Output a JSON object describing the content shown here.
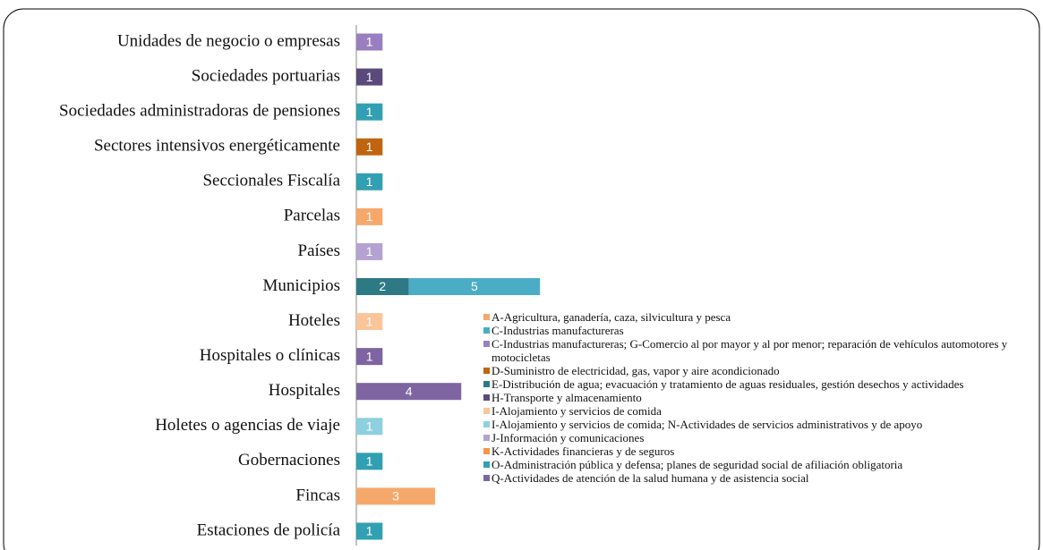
{
  "chart_data": {
    "type": "bar",
    "orientation": "horizontal",
    "stacked": true,
    "categories": [
      "Unidades de negocio o empresas",
      "Sociedades portuarias",
      "Sociedades administradoras de pensiones",
      "Sectores intensivos energéticamente",
      "Seccionales Fiscalía",
      "Parcelas",
      "Países",
      "Municipios",
      "Hoteles",
      "Hospitales o clínicas",
      "Hospitales",
      "Holetes o agencias de viaje",
      "Gobernaciones",
      "Fincas",
      "Estaciones de policía"
    ],
    "xlim": [
      0,
      26
    ],
    "series": [
      {
        "name": "A-Agricultura, ganadería, caza, silvicultura y pesca",
        "color": "#f6a86b",
        "values": [
          null,
          null,
          null,
          null,
          null,
          1,
          null,
          null,
          null,
          null,
          null,
          null,
          null,
          3,
          null
        ]
      },
      {
        "name": "C-Industrias manufactureras",
        "color": "#4bacc6",
        "values": [
          null,
          null,
          null,
          null,
          null,
          null,
          null,
          5,
          null,
          null,
          null,
          null,
          null,
          null,
          null
        ]
      },
      {
        "name": "C-Industrias manufactureras; G-Comercio al por mayor y al por menor; reparación de vehículos automotores y motocicletas",
        "color": "#9a7fc0",
        "values": [
          1,
          null,
          null,
          null,
          null,
          null,
          null,
          null,
          null,
          null,
          null,
          null,
          null,
          null,
          null
        ]
      },
      {
        "name": "D-Suministro de electricidad, gas, vapor y aire acondicionado",
        "color": "#c0650f",
        "values": [
          null,
          null,
          null,
          1,
          null,
          null,
          null,
          null,
          null,
          null,
          null,
          null,
          null,
          null,
          null
        ]
      },
      {
        "name": "E-Distribución de agua; evacuación y tratamiento de aguas residuales, gestión desechos y actividades",
        "color": "#2e7a84",
        "values": [
          null,
          null,
          null,
          null,
          null,
          null,
          null,
          2,
          null,
          null,
          null,
          null,
          null,
          null,
          null
        ]
      },
      {
        "name": "H-Transporte y almacenamiento",
        "color": "#5a4a7c",
        "values": [
          null,
          1,
          null,
          null,
          null,
          null,
          null,
          null,
          null,
          null,
          null,
          null,
          null,
          null,
          null
        ]
      },
      {
        "name": "I-Alojamiento y servicios de comida",
        "color": "#fbc59a",
        "values": [
          null,
          null,
          null,
          null,
          null,
          null,
          null,
          null,
          1,
          null,
          null,
          null,
          null,
          null,
          null
        ]
      },
      {
        "name": "I-Alojamiento y servicios de comida; N-Actividades de servicios administrativos y de apoyo",
        "color": "#8fd0e0",
        "values": [
          null,
          null,
          null,
          null,
          null,
          null,
          null,
          null,
          null,
          null,
          null,
          1,
          null,
          null,
          null
        ]
      },
      {
        "name": "J-Información y comunicaciones",
        "color": "#b3a2d2",
        "values": [
          null,
          null,
          null,
          null,
          null,
          null,
          1,
          null,
          null,
          null,
          null,
          null,
          null,
          null,
          null
        ]
      },
      {
        "name": "K-Actividades financieras y de seguros",
        "color": "#f79646",
        "values": [
          null,
          null,
          null,
          null,
          null,
          null,
          null,
          null,
          null,
          null,
          null,
          null,
          null,
          null,
          null
        ]
      },
      {
        "name": "O-Administración pública y defensa; planes de seguridad social de afiliación obligatoria",
        "color": "#31a0b2",
        "values": [
          null,
          null,
          1,
          null,
          1,
          null,
          null,
          null,
          null,
          null,
          null,
          null,
          1,
          null,
          1
        ]
      },
      {
        "name": "Q-Actividades de atención de la salud humana y de asistencia social",
        "color": "#7f64a2",
        "values": [
          null,
          null,
          null,
          null,
          null,
          null,
          null,
          null,
          null,
          1,
          4,
          null,
          null,
          null,
          null
        ]
      }
    ]
  }
}
